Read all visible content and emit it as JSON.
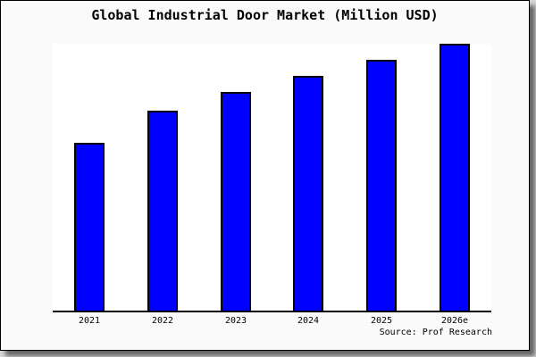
{
  "window": {
    "background_color": "#d9d9d9",
    "frame_background_color": "#fafafa",
    "frame_border_color": "#000000"
  },
  "chart_data": {
    "type": "bar",
    "title": "Global Industrial Door Market (Million USD)",
    "categories": [
      "2021",
      "2022",
      "2023",
      "2024",
      "2025",
      "2026e"
    ],
    "values": [
      63,
      75,
      82,
      88,
      94,
      100
    ],
    "values_note": "No y-axis scale is shown in the image; values are relative bar heights as percent of the tallest (2026e) bar.",
    "xlabel": "",
    "ylabel": "",
    "ylim": [
      0,
      100
    ],
    "grid": false,
    "legend": false,
    "plot_background": "#ffffff",
    "axis_color": "#000000",
    "bar_color": "#0000ff",
    "bar_border_color": "#000000"
  },
  "footer": {
    "source_label": "Source: Prof Research"
  }
}
